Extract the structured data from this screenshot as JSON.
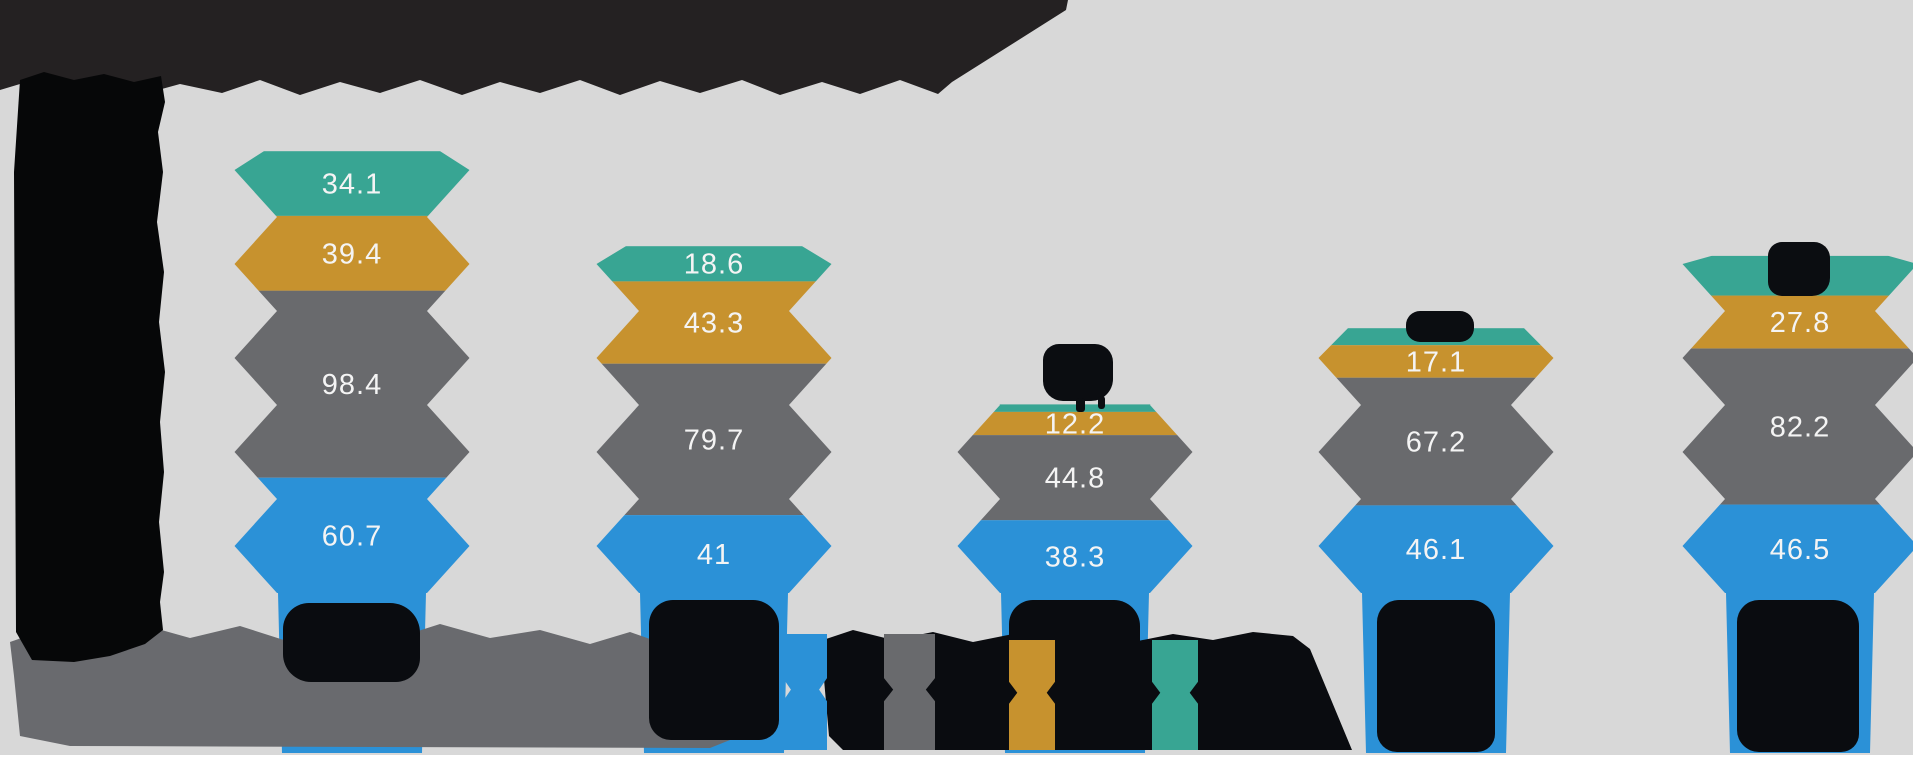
{
  "title": {
    "text": "",
    "redacted": true
  },
  "redactions": {
    "title": true,
    "y_axis_labels": true,
    "category_year_labels": true,
    "legend_labels": true,
    "footnote": true,
    "hidden_value_labels_columns": [
      3,
      4,
      5
    ]
  },
  "colors": {
    "background": "#d8d8d8",
    "teal": "#38a593",
    "gold": "#c7922e",
    "gray": "#696a6d",
    "blue": "#2b91d7",
    "label_text": "#f4f4f4",
    "redaction_black": "#0a0c10",
    "redaction_dark_gray": "#696a6e"
  },
  "chart_data": {
    "type": "bar",
    "subtype": "stacked-chevron-columns",
    "orientation": "vertical",
    "categories": [
      {
        "label": "",
        "redacted": true
      },
      {
        "label": "",
        "redacted": true
      },
      {
        "label": "",
        "redacted": true
      },
      {
        "label": "",
        "redacted": true
      },
      {
        "label": "",
        "redacted": true
      }
    ],
    "segment_order_top_to_bottom": [
      "teal",
      "gold",
      "gray",
      "blue"
    ],
    "columns": [
      {
        "segments": [
          {
            "color": "teal",
            "value": 34.1,
            "label": "34.1",
            "label_redacted": false
          },
          {
            "color": "gold",
            "value": 39.4,
            "label": "39.4",
            "label_redacted": false
          },
          {
            "color": "gray",
            "value": 98.4,
            "label": "98.4",
            "label_redacted": false
          },
          {
            "color": "blue",
            "value": 60.7,
            "label": "60.7",
            "label_redacted": false
          }
        ]
      },
      {
        "segments": [
          {
            "color": "teal",
            "value": 18.6,
            "label": "18.6",
            "label_redacted": false
          },
          {
            "color": "gold",
            "value": 43.3,
            "label": "43.3",
            "label_redacted": false
          },
          {
            "color": "gray",
            "value": 79.7,
            "label": "79.7",
            "label_redacted": false
          },
          {
            "color": "blue",
            "value": 41,
            "label": "41",
            "label_redacted": false
          }
        ]
      },
      {
        "segments": [
          {
            "color": "teal",
            "value": null,
            "label": "",
            "label_redacted": true,
            "height_units_est": 4
          },
          {
            "color": "gold",
            "value": 12.2,
            "label": "12.2",
            "label_redacted": false
          },
          {
            "color": "gray",
            "value": 44.8,
            "label": "44.8",
            "label_redacted": false
          },
          {
            "color": "blue",
            "value": 38.3,
            "label": "38.3",
            "label_redacted": false
          }
        ]
      },
      {
        "segments": [
          {
            "color": "teal",
            "value": null,
            "label": "",
            "label_redacted": true,
            "height_units_est": 9
          },
          {
            "color": "gold",
            "value": 17.1,
            "label": "17.1",
            "label_redacted": false
          },
          {
            "color": "gray",
            "value": 67.2,
            "label": "67.2",
            "label_redacted": false
          },
          {
            "color": "blue",
            "value": 46.1,
            "label": "46.1",
            "label_redacted": false
          }
        ]
      },
      {
        "segments": [
          {
            "color": "teal",
            "value": null,
            "label": "",
            "label_redacted": true,
            "height_units_est": 21
          },
          {
            "color": "gold",
            "value": 27.8,
            "label": "27.8",
            "label_redacted": false
          },
          {
            "color": "gray",
            "value": 82.2,
            "label": "82.2",
            "label_redacted": false
          },
          {
            "color": "blue",
            "value": 46.5,
            "label": "46.5",
            "label_redacted": false
          }
        ]
      }
    ],
    "legend": {
      "position": "bottom-right",
      "entries": [
        {
          "color": "blue",
          "label": "",
          "redacted": true
        },
        {
          "color": "gray",
          "label": "",
          "redacted": true
        },
        {
          "color": "gold",
          "label": "",
          "redacted": true
        },
        {
          "color": "teal",
          "label": "",
          "redacted": true
        }
      ]
    },
    "grid": false,
    "value_labels_inside_segments": true
  }
}
